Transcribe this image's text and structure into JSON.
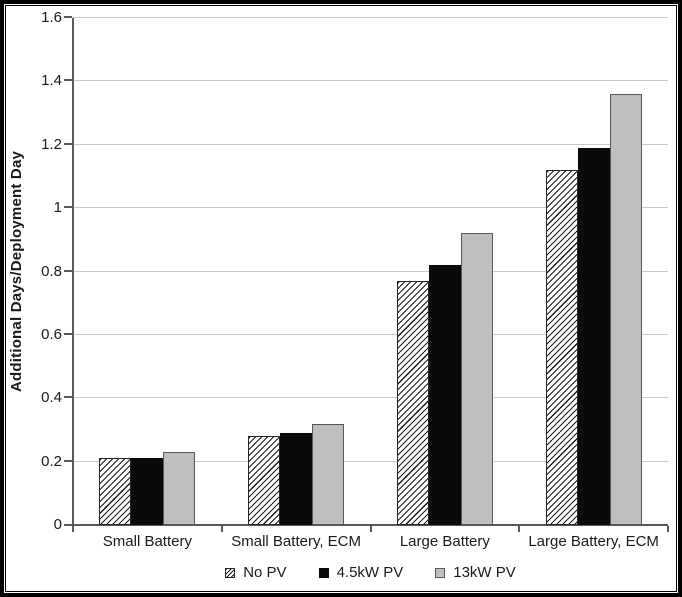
{
  "figure": {
    "ylabel": "Additional Days/Deployment Day"
  },
  "colors": {
    "text": "#1a1a1a",
    "gridline": "#c9c9c9",
    "axis": "#595959",
    "bar_no_pv_hatch": "#1a1a1a",
    "bar_45kw_black": "#0a0a0a",
    "bar_13kw_gray": "#bfbfbf",
    "bar_gray_border": "#595959"
  },
  "chart_data": {
    "type": "bar",
    "title": "",
    "xlabel": "",
    "ylabel": "Additional Days/Deployment Day",
    "categories": [
      "Small Battery",
      "Small Battery, ECM",
      "Large Battery",
      "Large Battery, ECM"
    ],
    "series": [
      {
        "name": "No PV",
        "style": "hatch",
        "values": [
          0.21,
          0.28,
          0.77,
          1.12
        ]
      },
      {
        "name": "4.5kW PV",
        "style": "solid-black",
        "values": [
          0.21,
          0.29,
          0.82,
          1.19
        ]
      },
      {
        "name": "13kW PV",
        "style": "solid-gray",
        "values": [
          0.23,
          0.32,
          0.92,
          1.36
        ]
      }
    ],
    "ylim": [
      0,
      1.6
    ],
    "ytick_labels": [
      "0",
      "0.2",
      "0.4",
      "0.6",
      "0.8",
      "1",
      "1.2",
      "1.4",
      "1.6"
    ],
    "ytick_values": [
      0,
      0.2,
      0.4,
      0.6,
      0.8,
      1.0,
      1.2,
      1.4,
      1.6
    ],
    "grid": "horizontal",
    "legend_position": "bottom"
  }
}
